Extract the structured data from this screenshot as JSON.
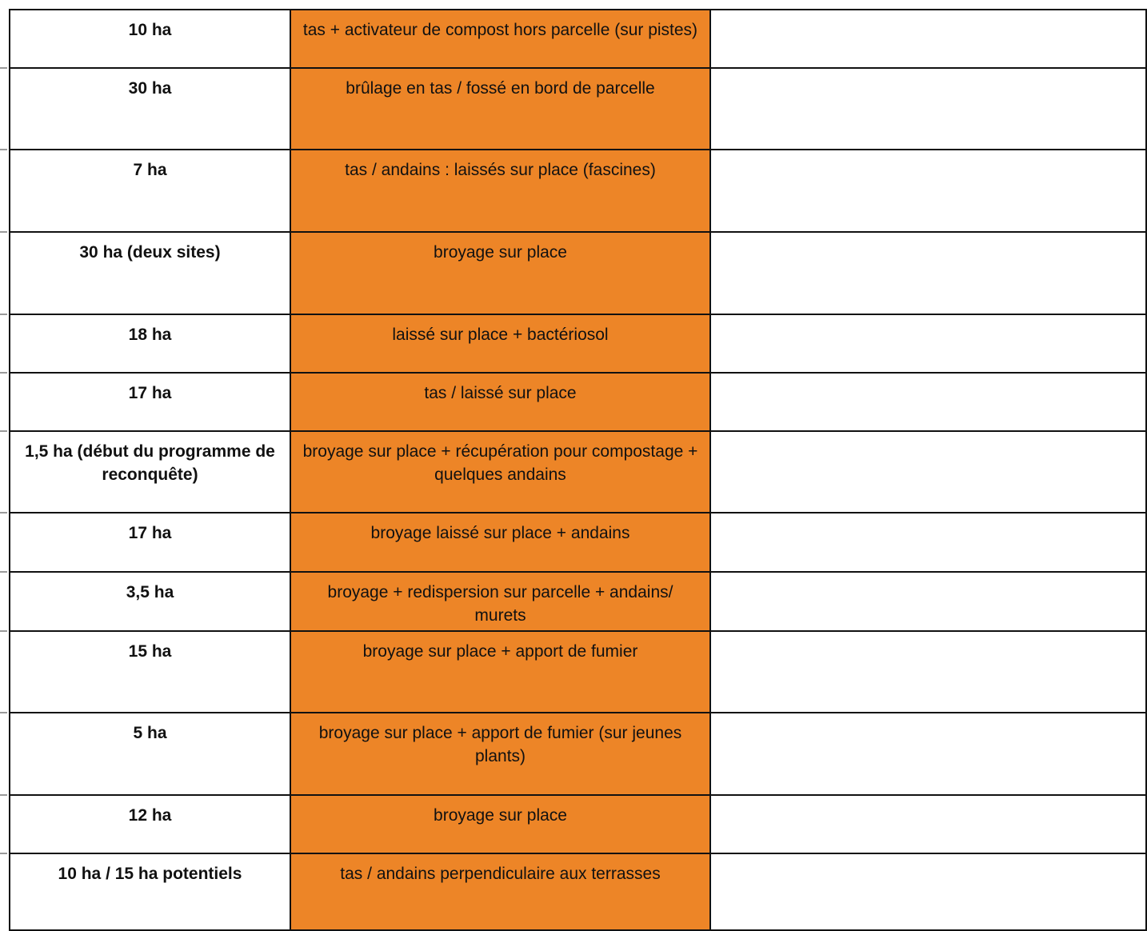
{
  "table": {
    "rows": [
      [
        "10 ha",
        "tas + activateur de compost hors parcelle (sur pistes)"
      ],
      [
        "30 ha",
        "brûlage en tas / fossé en bord de parcelle"
      ],
      [
        "7 ha",
        "tas / andains : laissés sur place (fascines)"
      ],
      [
        "30 ha (deux sites)",
        "broyage sur place"
      ],
      [
        "18 ha",
        "laissé sur place + bactériosol"
      ],
      [
        "17 ha",
        "tas / laissé sur place"
      ],
      [
        "1,5 ha (début du programme de reconquête)",
        "broyage sur place + récupération pour compostage + quelques andains"
      ],
      [
        "17 ha",
        "broyage laissé sur place + andains"
      ],
      [
        "3,5 ha",
        "broyage + redispersion sur parcelle + andains/ murets"
      ],
      [
        "15 ha",
        "broyage sur place + apport de fumier"
      ],
      [
        "5 ha",
        "broyage sur place + apport de fumier (sur jeunes plants)"
      ],
      [
        "12 ha",
        "broyage sur place"
      ],
      [
        "10 ha / 15 ha potentiels",
        "tas / andains perpendiculaire aux terrasses"
      ]
    ]
  }
}
